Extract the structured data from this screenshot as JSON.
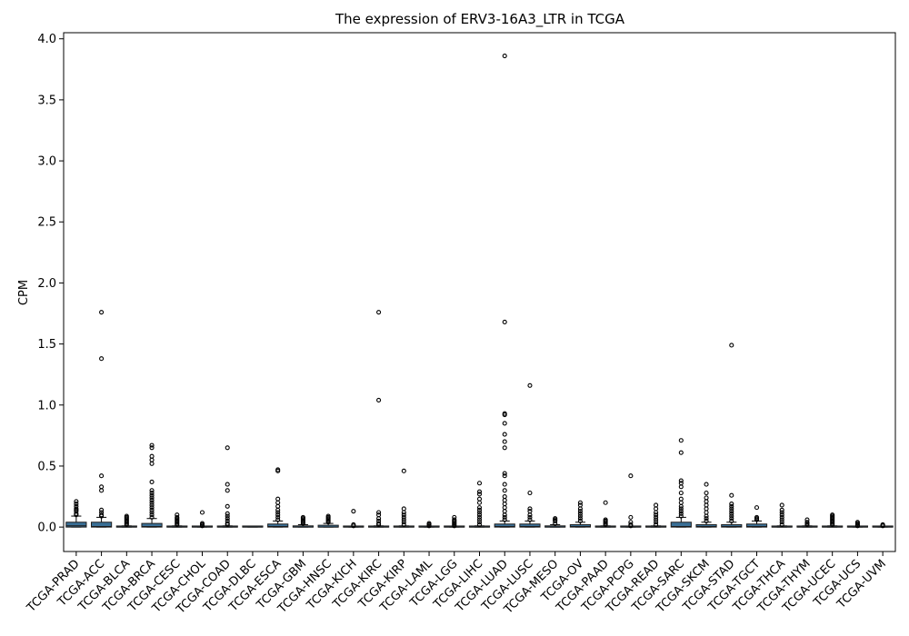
{
  "chart_data": {
    "type": "box",
    "title": "The expression of ERV3-16A3_LTR in TCGA",
    "xlabel": "",
    "ylabel": "CPM",
    "ylim": [
      -0.2,
      4.05
    ],
    "yticks": [
      0.0,
      0.5,
      1.0,
      1.5,
      2.0,
      2.5,
      3.0,
      3.5,
      4.0
    ],
    "ytick_labels": [
      "0.0",
      "0.5",
      "1.0",
      "1.5",
      "2.0",
      "2.5",
      "3.0",
      "3.5",
      "4.0"
    ],
    "grid": false,
    "box_color": "#3a6f96",
    "categories": [
      "TCGA-PRAD",
      "TCGA-ACC",
      "TCGA-BLCA",
      "TCGA-BRCA",
      "TCGA-CESC",
      "TCGA-CHOL",
      "TCGA-COAD",
      "TCGA-DLBC",
      "TCGA-ESCA",
      "TCGA-GBM",
      "TCGA-HNSC",
      "TCGA-KICH",
      "TCGA-KIRC",
      "TCGA-KIRP",
      "TCGA-LAML",
      "TCGA-LGG",
      "TCGA-LIHC",
      "TCGA-LUAD",
      "TCGA-LUSC",
      "TCGA-MESO",
      "TCGA-OV",
      "TCGA-PAAD",
      "TCGA-PCPG",
      "TCGA-READ",
      "TCGA-SARC",
      "TCGA-SKCM",
      "TCGA-STAD",
      "TCGA-TGCT",
      "TCGA-THCA",
      "TCGA-THYM",
      "TCGA-UCEC",
      "TCGA-UCS",
      "TCGA-UVM"
    ],
    "boxes": [
      {
        "q1": 0.0,
        "median": 0.01,
        "q3": 0.04,
        "whisker_low": 0.0,
        "whisker_high": 0.09,
        "outliers": [
          0.1,
          0.11,
          0.13,
          0.14,
          0.15,
          0.17,
          0.19,
          0.21
        ]
      },
      {
        "q1": 0.0,
        "median": 0.005,
        "q3": 0.04,
        "whisker_low": 0.0,
        "whisker_high": 0.08,
        "outliers": [
          0.09,
          0.1,
          0.12,
          0.14,
          0.3,
          0.33,
          0.42,
          1.38,
          1.76
        ]
      },
      {
        "q1": 0.0,
        "median": 0.0,
        "q3": 0.005,
        "whisker_low": 0.0,
        "whisker_high": 0.01,
        "outliers": [
          0.02,
          0.03,
          0.04,
          0.05,
          0.06,
          0.07,
          0.08,
          0.09
        ]
      },
      {
        "q1": 0.0,
        "median": 0.005,
        "q3": 0.03,
        "whisker_low": 0.0,
        "whisker_high": 0.07,
        "outliers": [
          0.08,
          0.1,
          0.12,
          0.14,
          0.16,
          0.18,
          0.2,
          0.22,
          0.24,
          0.26,
          0.28,
          0.3,
          0.37,
          0.52,
          0.55,
          0.58,
          0.65,
          0.67
        ]
      },
      {
        "q1": 0.0,
        "median": 0.0,
        "q3": 0.005,
        "whisker_low": 0.0,
        "whisker_high": 0.01,
        "outliers": [
          0.02,
          0.03,
          0.04,
          0.05,
          0.06,
          0.07,
          0.08,
          0.1
        ]
      },
      {
        "q1": 0.0,
        "median": 0.0,
        "q3": 0.003,
        "whisker_low": 0.0,
        "whisker_high": 0.005,
        "outliers": [
          0.01,
          0.02,
          0.03,
          0.12
        ]
      },
      {
        "q1": 0.0,
        "median": 0.0,
        "q3": 0.005,
        "whisker_low": 0.0,
        "whisker_high": 0.01,
        "outliers": [
          0.02,
          0.03,
          0.05,
          0.07,
          0.09,
          0.11,
          0.17,
          0.3,
          0.35,
          0.65
        ]
      },
      {
        "q1": 0.0,
        "median": 0.0,
        "q3": 0.002,
        "whisker_low": 0.0,
        "whisker_high": 0.003,
        "outliers": []
      },
      {
        "q1": 0.0,
        "median": 0.005,
        "q3": 0.025,
        "whisker_low": 0.0,
        "whisker_high": 0.05,
        "outliers": [
          0.06,
          0.08,
          0.1,
          0.12,
          0.14,
          0.17,
          0.2,
          0.23,
          0.46,
          0.47
        ]
      },
      {
        "q1": 0.0,
        "median": 0.0,
        "q3": 0.01,
        "whisker_low": 0.0,
        "whisker_high": 0.02,
        "outliers": [
          0.03,
          0.04,
          0.05,
          0.06,
          0.07,
          0.08
        ]
      },
      {
        "q1": 0.0,
        "median": 0.0,
        "q3": 0.015,
        "whisker_low": 0.0,
        "whisker_high": 0.03,
        "outliers": [
          0.04,
          0.05,
          0.06,
          0.07,
          0.08,
          0.09
        ]
      },
      {
        "q1": 0.0,
        "median": 0.0,
        "q3": 0.003,
        "whisker_low": 0.0,
        "whisker_high": 0.005,
        "outliers": [
          0.01,
          0.02,
          0.13
        ]
      },
      {
        "q1": 0.0,
        "median": 0.0,
        "q3": 0.005,
        "whisker_low": 0.0,
        "whisker_high": 0.01,
        "outliers": [
          0.02,
          0.03,
          0.05,
          0.07,
          0.1,
          0.12,
          1.04,
          1.76
        ]
      },
      {
        "q1": 0.0,
        "median": 0.0,
        "q3": 0.005,
        "whisker_low": 0.0,
        "whisker_high": 0.01,
        "outliers": [
          0.02,
          0.04,
          0.06,
          0.08,
          0.1,
          0.12,
          0.15,
          0.46
        ]
      },
      {
        "q1": 0.0,
        "median": 0.0,
        "q3": 0.002,
        "whisker_low": 0.0,
        "whisker_high": 0.003,
        "outliers": [
          0.01,
          0.02,
          0.03
        ]
      },
      {
        "q1": 0.0,
        "median": 0.0,
        "q3": 0.003,
        "whisker_low": 0.0,
        "whisker_high": 0.005,
        "outliers": [
          0.01,
          0.02,
          0.03,
          0.04,
          0.05,
          0.06,
          0.08
        ]
      },
      {
        "q1": 0.0,
        "median": 0.0,
        "q3": 0.005,
        "whisker_low": 0.0,
        "whisker_high": 0.01,
        "outliers": [
          0.02,
          0.04,
          0.06,
          0.08,
          0.1,
          0.12,
          0.14,
          0.16,
          0.2,
          0.23,
          0.27,
          0.29,
          0.36
        ]
      },
      {
        "q1": 0.0,
        "median": 0.005,
        "q3": 0.025,
        "whisker_low": 0.0,
        "whisker_high": 0.05,
        "outliers": [
          0.06,
          0.08,
          0.1,
          0.13,
          0.16,
          0.19,
          0.22,
          0.25,
          0.3,
          0.35,
          0.42,
          0.44,
          0.65,
          0.7,
          0.76,
          0.85,
          0.92,
          0.93,
          1.68,
          3.86
        ]
      },
      {
        "q1": 0.0,
        "median": 0.005,
        "q3": 0.025,
        "whisker_low": 0.0,
        "whisker_high": 0.05,
        "outliers": [
          0.06,
          0.08,
          0.1,
          0.13,
          0.15,
          0.28,
          1.16
        ]
      },
      {
        "q1": 0.0,
        "median": 0.0,
        "q3": 0.01,
        "whisker_low": 0.0,
        "whisker_high": 0.02,
        "outliers": [
          0.03,
          0.05,
          0.06,
          0.07
        ]
      },
      {
        "q1": 0.0,
        "median": 0.005,
        "q3": 0.02,
        "whisker_low": 0.0,
        "whisker_high": 0.04,
        "outliers": [
          0.05,
          0.07,
          0.09,
          0.11,
          0.13,
          0.15,
          0.18,
          0.2
        ]
      },
      {
        "q1": 0.0,
        "median": 0.0,
        "q3": 0.005,
        "whisker_low": 0.0,
        "whisker_high": 0.01,
        "outliers": [
          0.02,
          0.03,
          0.04,
          0.05,
          0.06,
          0.2
        ]
      },
      {
        "q1": 0.0,
        "median": 0.0,
        "q3": 0.003,
        "whisker_low": 0.0,
        "whisker_high": 0.005,
        "outliers": [
          0.01,
          0.02,
          0.04,
          0.08,
          0.42
        ]
      },
      {
        "q1": 0.0,
        "median": 0.0,
        "q3": 0.005,
        "whisker_low": 0.0,
        "whisker_high": 0.01,
        "outliers": [
          0.02,
          0.04,
          0.06,
          0.08,
          0.1,
          0.12,
          0.15,
          0.18
        ]
      },
      {
        "q1": 0.0,
        "median": 0.005,
        "q3": 0.04,
        "whisker_low": 0.0,
        "whisker_high": 0.08,
        "outliers": [
          0.09,
          0.11,
          0.13,
          0.15,
          0.17,
          0.2,
          0.23,
          0.28,
          0.33,
          0.36,
          0.38,
          0.61,
          0.71
        ]
      },
      {
        "q1": 0.0,
        "median": 0.005,
        "q3": 0.02,
        "whisker_low": 0.0,
        "whisker_high": 0.04,
        "outliers": [
          0.05,
          0.07,
          0.09,
          0.12,
          0.15,
          0.18,
          0.21,
          0.24,
          0.28,
          0.35
        ]
      },
      {
        "q1": 0.0,
        "median": 0.005,
        "q3": 0.02,
        "whisker_low": 0.0,
        "whisker_high": 0.04,
        "outliers": [
          0.05,
          0.07,
          0.09,
          0.11,
          0.13,
          0.15,
          0.17,
          0.19,
          0.26,
          1.49
        ]
      },
      {
        "q1": 0.0,
        "median": 0.005,
        "q3": 0.025,
        "whisker_low": 0.0,
        "whisker_high": 0.05,
        "outliers": [
          0.06,
          0.07,
          0.08,
          0.16
        ]
      },
      {
        "q1": 0.0,
        "median": 0.0,
        "q3": 0.005,
        "whisker_low": 0.0,
        "whisker_high": 0.01,
        "outliers": [
          0.02,
          0.04,
          0.06,
          0.08,
          0.1,
          0.12,
          0.14,
          0.18
        ]
      },
      {
        "q1": 0.0,
        "median": 0.0,
        "q3": 0.005,
        "whisker_low": 0.0,
        "whisker_high": 0.01,
        "outliers": [
          0.02,
          0.03,
          0.04,
          0.06
        ]
      },
      {
        "q1": 0.0,
        "median": 0.0,
        "q3": 0.005,
        "whisker_low": 0.0,
        "whisker_high": 0.01,
        "outliers": [
          0.02,
          0.03,
          0.04,
          0.05,
          0.06,
          0.07,
          0.08,
          0.09,
          0.1
        ]
      },
      {
        "q1": 0.0,
        "median": 0.0,
        "q3": 0.003,
        "whisker_low": 0.0,
        "whisker_high": 0.005,
        "outliers": [
          0.01,
          0.02,
          0.03,
          0.04
        ]
      },
      {
        "q1": 0.0,
        "median": 0.0,
        "q3": 0.002,
        "whisker_low": 0.0,
        "whisker_high": 0.003,
        "outliers": [
          0.01,
          0.015,
          0.02
        ]
      }
    ]
  }
}
